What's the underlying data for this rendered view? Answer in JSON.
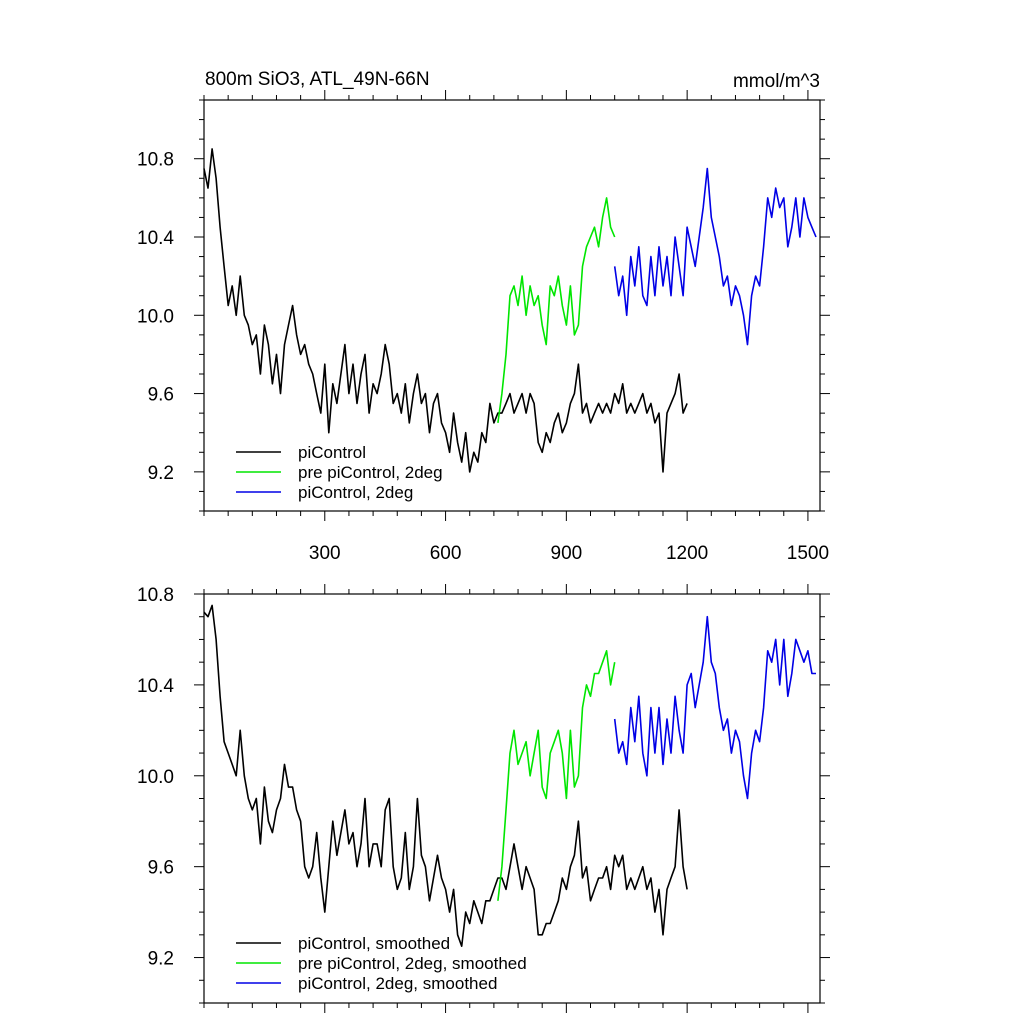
{
  "chart_data": [
    {
      "type": "line",
      "title": "800m SiO3, ATL_49N-66N",
      "title_right": "mmol/m^3",
      "xlabel": "",
      "ylabel": "",
      "xlim": [
        0,
        1530
      ],
      "ylim": [
        9.0,
        11.1
      ],
      "xticks": [
        300,
        600,
        900,
        1200,
        1500
      ],
      "xtick_labels": [
        "300",
        "600",
        "900",
        "1200",
        "1500"
      ],
      "yticks": [
        9.2,
        9.6,
        10.0,
        10.4,
        10.8
      ],
      "ytick_labels": [
        "9.2",
        "9.6",
        "10.0",
        "10.4",
        "10.8"
      ],
      "grid": false,
      "legend_position": "bottom-left",
      "series": [
        {
          "name": "piControl",
          "color": "#000000",
          "x": [
            0,
            10,
            20,
            30,
            40,
            50,
            60,
            70,
            80,
            90,
            100,
            110,
            120,
            130,
            140,
            150,
            160,
            170,
            180,
            190,
            200,
            210,
            220,
            230,
            240,
            250,
            260,
            270,
            280,
            290,
            300,
            310,
            320,
            330,
            340,
            350,
            360,
            370,
            380,
            390,
            400,
            410,
            420,
            430,
            440,
            450,
            460,
            470,
            480,
            490,
            500,
            510,
            520,
            530,
            540,
            550,
            560,
            570,
            580,
            590,
            600,
            610,
            620,
            630,
            640,
            650,
            660,
            670,
            680,
            690,
            700,
            710,
            720,
            730,
            740,
            750,
            760,
            770,
            780,
            790,
            800,
            810,
            820,
            830,
            840,
            850,
            860,
            870,
            880,
            890,
            900,
            910,
            920,
            930,
            940,
            950,
            960,
            970,
            980,
            990,
            1000,
            1010,
            1020,
            1030,
            1040,
            1050,
            1060,
            1070,
            1080,
            1090,
            1100,
            1110,
            1120,
            1130,
            1140,
            1150,
            1160,
            1170,
            1180,
            1190,
            1200
          ],
          "y": [
            10.75,
            10.65,
            10.85,
            10.7,
            10.45,
            10.25,
            10.05,
            10.15,
            10.0,
            10.2,
            10.0,
            9.95,
            9.85,
            9.9,
            9.7,
            9.95,
            9.85,
            9.65,
            9.8,
            9.6,
            9.85,
            9.95,
            10.05,
            9.9,
            9.8,
            9.85,
            9.75,
            9.7,
            9.6,
            9.5,
            9.75,
            9.4,
            9.65,
            9.55,
            9.7,
            9.85,
            9.6,
            9.75,
            9.55,
            9.7,
            9.8,
            9.5,
            9.65,
            9.6,
            9.7,
            9.85,
            9.75,
            9.55,
            9.6,
            9.5,
            9.65,
            9.45,
            9.6,
            9.7,
            9.55,
            9.6,
            9.4,
            9.55,
            9.6,
            9.45,
            9.4,
            9.3,
            9.5,
            9.35,
            9.25,
            9.4,
            9.2,
            9.3,
            9.25,
            9.4,
            9.35,
            9.55,
            9.45,
            9.5,
            9.5,
            9.55,
            9.6,
            9.5,
            9.55,
            9.6,
            9.5,
            9.6,
            9.55,
            9.35,
            9.3,
            9.4,
            9.35,
            9.45,
            9.5,
            9.4,
            9.45,
            9.55,
            9.6,
            9.75,
            9.5,
            9.55,
            9.45,
            9.5,
            9.55,
            9.5,
            9.55,
            9.5,
            9.6,
            9.55,
            9.65,
            9.5,
            9.55,
            9.5,
            9.55,
            9.6,
            9.5,
            9.55,
            9.45,
            9.5,
            9.2,
            9.5,
            9.55,
            9.6,
            9.7,
            9.5,
            9.55
          ]
        },
        {
          "name": "pre piControl, 2deg",
          "color": "#00e600",
          "x": [
            730,
            740,
            750,
            760,
            770,
            780,
            790,
            800,
            810,
            820,
            830,
            840,
            850,
            860,
            870,
            880,
            890,
            900,
            910,
            920,
            930,
            940,
            950,
            960,
            970,
            980,
            990,
            1000,
            1010,
            1020
          ],
          "y": [
            9.45,
            9.6,
            9.8,
            10.1,
            10.15,
            10.05,
            10.2,
            10.0,
            10.15,
            10.05,
            10.1,
            9.95,
            9.85,
            10.15,
            10.1,
            10.2,
            10.05,
            9.95,
            10.15,
            9.9,
            9.95,
            10.25,
            10.35,
            10.4,
            10.45,
            10.35,
            10.5,
            10.6,
            10.45,
            10.4
          ]
        },
        {
          "name": "piControl, 2deg",
          "color": "#0000e6",
          "x": [
            1020,
            1030,
            1040,
            1050,
            1060,
            1070,
            1080,
            1090,
            1100,
            1110,
            1120,
            1130,
            1140,
            1150,
            1160,
            1170,
            1180,
            1190,
            1200,
            1210,
            1220,
            1230,
            1240,
            1250,
            1260,
            1270,
            1280,
            1290,
            1300,
            1310,
            1320,
            1330,
            1340,
            1350,
            1360,
            1370,
            1380,
            1390,
            1400,
            1410,
            1420,
            1430,
            1440,
            1450,
            1460,
            1470,
            1480,
            1490,
            1500,
            1510,
            1520
          ],
          "y": [
            10.25,
            10.1,
            10.2,
            10.0,
            10.3,
            10.15,
            10.35,
            10.1,
            10.05,
            10.3,
            10.1,
            10.35,
            10.15,
            10.3,
            10.1,
            10.4,
            10.25,
            10.1,
            10.45,
            10.35,
            10.25,
            10.4,
            10.55,
            10.75,
            10.5,
            10.4,
            10.3,
            10.15,
            10.2,
            10.05,
            10.15,
            10.1,
            10.0,
            9.85,
            10.1,
            10.2,
            10.15,
            10.35,
            10.6,
            10.5,
            10.65,
            10.55,
            10.6,
            10.35,
            10.45,
            10.6,
            10.4,
            10.6,
            10.5,
            10.45,
            10.4
          ]
        }
      ]
    },
    {
      "type": "line",
      "title": "",
      "xlabel": "",
      "ylabel": "",
      "xlim": [
        0,
        1530
      ],
      "ylim": [
        9.0,
        10.8
      ],
      "xticks": [
        300,
        600,
        900,
        1200,
        1500
      ],
      "yticks": [
        9.2,
        9.6,
        10.0,
        10.4,
        10.8
      ],
      "ytick_labels": [
        "9.2",
        "9.6",
        "10.0",
        "10.4",
        "10.8"
      ],
      "grid": false,
      "legend_position": "bottom-left",
      "series": [
        {
          "name": "piControl, smoothed",
          "color": "#000000",
          "x": [
            0,
            10,
            20,
            30,
            40,
            50,
            60,
            70,
            80,
            90,
            100,
            110,
            120,
            130,
            140,
            150,
            160,
            170,
            180,
            190,
            200,
            210,
            220,
            230,
            240,
            250,
            260,
            270,
            280,
            290,
            300,
            310,
            320,
            330,
            340,
            350,
            360,
            370,
            380,
            390,
            400,
            410,
            420,
            430,
            440,
            450,
            460,
            470,
            480,
            490,
            500,
            510,
            520,
            530,
            540,
            550,
            560,
            570,
            580,
            590,
            600,
            610,
            620,
            630,
            640,
            650,
            660,
            670,
            680,
            690,
            700,
            710,
            720,
            730,
            740,
            750,
            760,
            770,
            780,
            790,
            800,
            810,
            820,
            830,
            840,
            850,
            860,
            870,
            880,
            890,
            900,
            910,
            920,
            930,
            940,
            950,
            960,
            970,
            980,
            990,
            1000,
            1010,
            1020,
            1030,
            1040,
            1050,
            1060,
            1070,
            1080,
            1090,
            1100,
            1110,
            1120,
            1130,
            1140,
            1150,
            1160,
            1170,
            1180,
            1190,
            1200
          ],
          "y": [
            10.72,
            10.7,
            10.75,
            10.6,
            10.35,
            10.15,
            10.1,
            10.05,
            10.0,
            10.2,
            10.0,
            9.9,
            9.85,
            9.9,
            9.7,
            9.95,
            9.8,
            9.75,
            9.85,
            9.9,
            10.05,
            9.95,
            9.95,
            9.85,
            9.8,
            9.6,
            9.55,
            9.6,
            9.75,
            9.55,
            9.4,
            9.6,
            9.8,
            9.65,
            9.75,
            9.85,
            9.7,
            9.75,
            9.6,
            9.7,
            9.9,
            9.6,
            9.7,
            9.7,
            9.6,
            9.85,
            9.9,
            9.6,
            9.5,
            9.55,
            9.75,
            9.5,
            9.6,
            9.9,
            9.65,
            9.6,
            9.45,
            9.55,
            9.65,
            9.55,
            9.5,
            9.4,
            9.5,
            9.3,
            9.25,
            9.4,
            9.35,
            9.45,
            9.4,
            9.35,
            9.45,
            9.45,
            9.5,
            9.55,
            9.55,
            9.5,
            9.6,
            9.7,
            9.6,
            9.5,
            9.6,
            9.55,
            9.5,
            9.3,
            9.3,
            9.35,
            9.35,
            9.4,
            9.45,
            9.55,
            9.5,
            9.6,
            9.65,
            9.8,
            9.55,
            9.6,
            9.45,
            9.5,
            9.55,
            9.55,
            9.6,
            9.5,
            9.65,
            9.6,
            9.65,
            9.5,
            9.55,
            9.5,
            9.55,
            9.6,
            9.5,
            9.55,
            9.4,
            9.5,
            9.3,
            9.5,
            9.55,
            9.6,
            9.85,
            9.6,
            9.5
          ]
        },
        {
          "name": "pre piControl, 2deg, smoothed",
          "color": "#00e600",
          "x": [
            730,
            740,
            750,
            760,
            770,
            780,
            790,
            800,
            810,
            820,
            830,
            840,
            850,
            860,
            870,
            880,
            890,
            900,
            910,
            920,
            930,
            940,
            950,
            960,
            970,
            980,
            990,
            1000,
            1010,
            1020
          ],
          "y": [
            9.45,
            9.6,
            9.85,
            10.1,
            10.2,
            10.05,
            10.1,
            10.15,
            10.0,
            10.1,
            10.2,
            9.95,
            9.9,
            10.1,
            10.15,
            10.2,
            10.1,
            9.9,
            10.2,
            9.95,
            10.0,
            10.3,
            10.4,
            10.35,
            10.45,
            10.45,
            10.5,
            10.55,
            10.4,
            10.5
          ]
        },
        {
          "name": "piControl, 2deg, smoothed",
          "color": "#0000e6",
          "x": [
            1020,
            1030,
            1040,
            1050,
            1060,
            1070,
            1080,
            1090,
            1100,
            1110,
            1120,
            1130,
            1140,
            1150,
            1160,
            1170,
            1180,
            1190,
            1200,
            1210,
            1220,
            1230,
            1240,
            1250,
            1260,
            1270,
            1280,
            1290,
            1300,
            1310,
            1320,
            1330,
            1340,
            1350,
            1360,
            1370,
            1380,
            1390,
            1400,
            1410,
            1420,
            1430,
            1440,
            1450,
            1460,
            1470,
            1480,
            1490,
            1500,
            1510,
            1520
          ],
          "y": [
            10.25,
            10.1,
            10.15,
            10.05,
            10.3,
            10.15,
            10.35,
            10.1,
            10.0,
            10.3,
            10.1,
            10.3,
            10.05,
            10.25,
            10.1,
            10.35,
            10.2,
            10.1,
            10.4,
            10.45,
            10.3,
            10.4,
            10.5,
            10.7,
            10.5,
            10.45,
            10.3,
            10.2,
            10.25,
            10.1,
            10.2,
            10.15,
            10.0,
            9.9,
            10.1,
            10.2,
            10.15,
            10.3,
            10.55,
            10.5,
            10.6,
            10.4,
            10.6,
            10.35,
            10.45,
            10.6,
            10.55,
            10.5,
            10.55,
            10.45,
            10.45
          ]
        }
      ]
    }
  ]
}
